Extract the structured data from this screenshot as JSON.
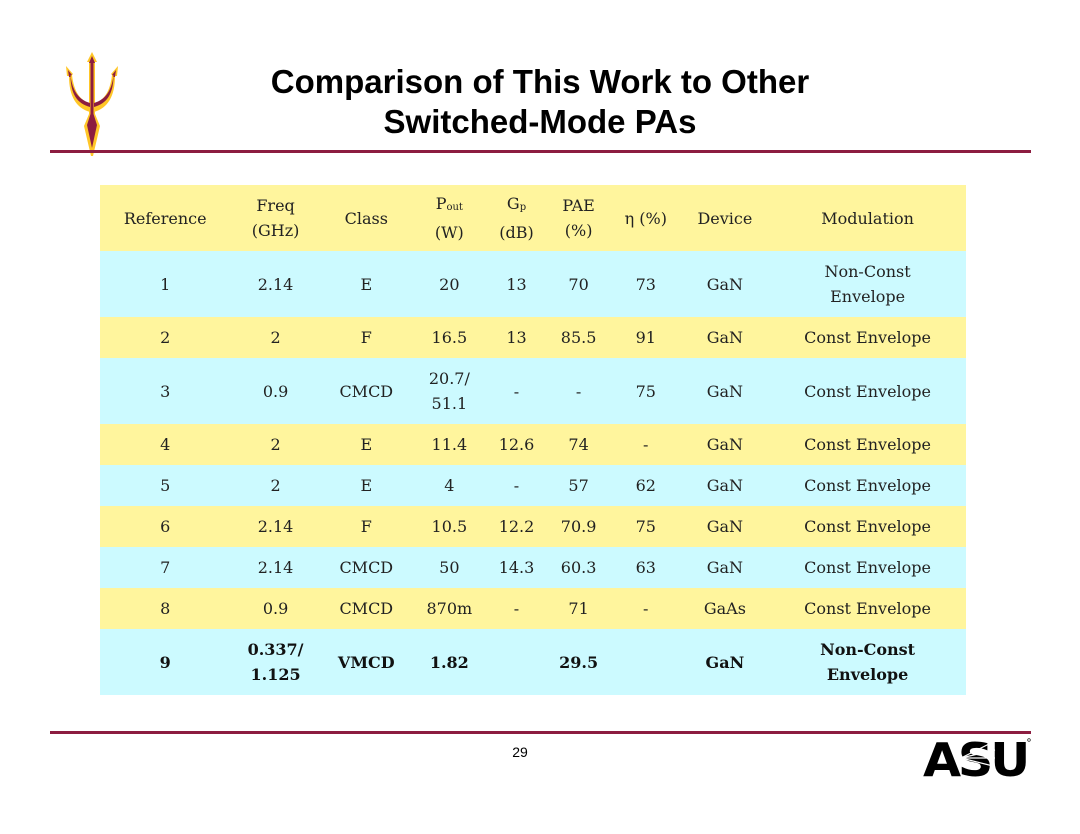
{
  "title": {
    "line1": "Comparison of This Work to Other",
    "line2": "Switched-Mode PAs"
  },
  "table": {
    "headers": {
      "reference": "Reference",
      "freq_l1": "Freq",
      "freq_l2": "(GHz)",
      "class": "Class",
      "pout_l1_main": "P",
      "pout_l1_sub": "out",
      "pout_l2": "(W)",
      "gp_l1_main": "G",
      "gp_l1_sub": "p",
      "gp_l2": "(dB)",
      "pae_l1": "PAE",
      "pae_l2": "(%)",
      "eta": "η (%)",
      "device": "Device",
      "modulation": "Modulation"
    },
    "rows": [
      {
        "reference": "1",
        "freq_l1": "2.14",
        "freq_l2": "",
        "class": "E",
        "pout_l1": "20",
        "pout_l2": "",
        "gp": "13",
        "pae": "70",
        "eta": "73",
        "device": "GaN",
        "modulation_l1": "Non-Const",
        "modulation_l2": "Envelope"
      },
      {
        "reference": "2",
        "freq_l1": "2",
        "freq_l2": "",
        "class": "F",
        "pout_l1": "16.5",
        "pout_l2": "",
        "gp": "13",
        "pae": "85.5",
        "eta": "91",
        "device": "GaN",
        "modulation_l1": "Const Envelope",
        "modulation_l2": ""
      },
      {
        "reference": "3",
        "freq_l1": "0.9",
        "freq_l2": "",
        "class": "CMCD",
        "pout_l1": "20.7/",
        "pout_l2": "51.1",
        "gp": "-",
        "pae": "-",
        "eta": "75",
        "device": "GaN",
        "modulation_l1": "Const Envelope",
        "modulation_l2": ""
      },
      {
        "reference": "4",
        "freq_l1": "2",
        "freq_l2": "",
        "class": "E",
        "pout_l1": "11.4",
        "pout_l2": "",
        "gp": "12.6",
        "pae": "74",
        "eta": "-",
        "device": "GaN",
        "modulation_l1": "Const Envelope",
        "modulation_l2": ""
      },
      {
        "reference": "5",
        "freq_l1": "2",
        "freq_l2": "",
        "class": "E",
        "pout_l1": "4",
        "pout_l2": "",
        "gp": "-",
        "pae": "57",
        "eta": "62",
        "device": "GaN",
        "modulation_l1": "Const Envelope",
        "modulation_l2": ""
      },
      {
        "reference": "6",
        "freq_l1": "2.14",
        "freq_l2": "",
        "class": "F",
        "pout_l1": "10.5",
        "pout_l2": "",
        "gp": "12.2",
        "pae": "70.9",
        "eta": "75",
        "device": "GaN",
        "modulation_l1": "Const Envelope",
        "modulation_l2": ""
      },
      {
        "reference": "7",
        "freq_l1": "2.14",
        "freq_l2": "",
        "class": "CMCD",
        "pout_l1": "50",
        "pout_l2": "",
        "gp": "14.3",
        "pae": "60.3",
        "eta": "63",
        "device": "GaN",
        "modulation_l1": "Const Envelope",
        "modulation_l2": ""
      },
      {
        "reference": "8",
        "freq_l1": "0.9",
        "freq_l2": "",
        "class": "CMCD",
        "pout_l1": "870m",
        "pout_l2": "",
        "gp": "-",
        "pae": "71",
        "eta": "-",
        "device": "GaAs",
        "modulation_l1": "Const Envelope",
        "modulation_l2": ""
      },
      {
        "reference": "9",
        "freq_l1": "0.337/",
        "freq_l2": "1.125",
        "class": "VMCD",
        "pout_l1": "1.82",
        "pout_l2": "",
        "gp": "",
        "pae": "29.5",
        "eta": "",
        "device": "GaN",
        "modulation_l1": "Non-Const",
        "modulation_l2": "Envelope"
      }
    ]
  },
  "footer": {
    "page_number": "29",
    "logo_text": "ASU"
  },
  "colors": {
    "accent_maroon": "#8c1d40",
    "row_yellow": "#fff59d",
    "row_cyan": "#ccfaff",
    "logo_gold": "#ffc627"
  }
}
